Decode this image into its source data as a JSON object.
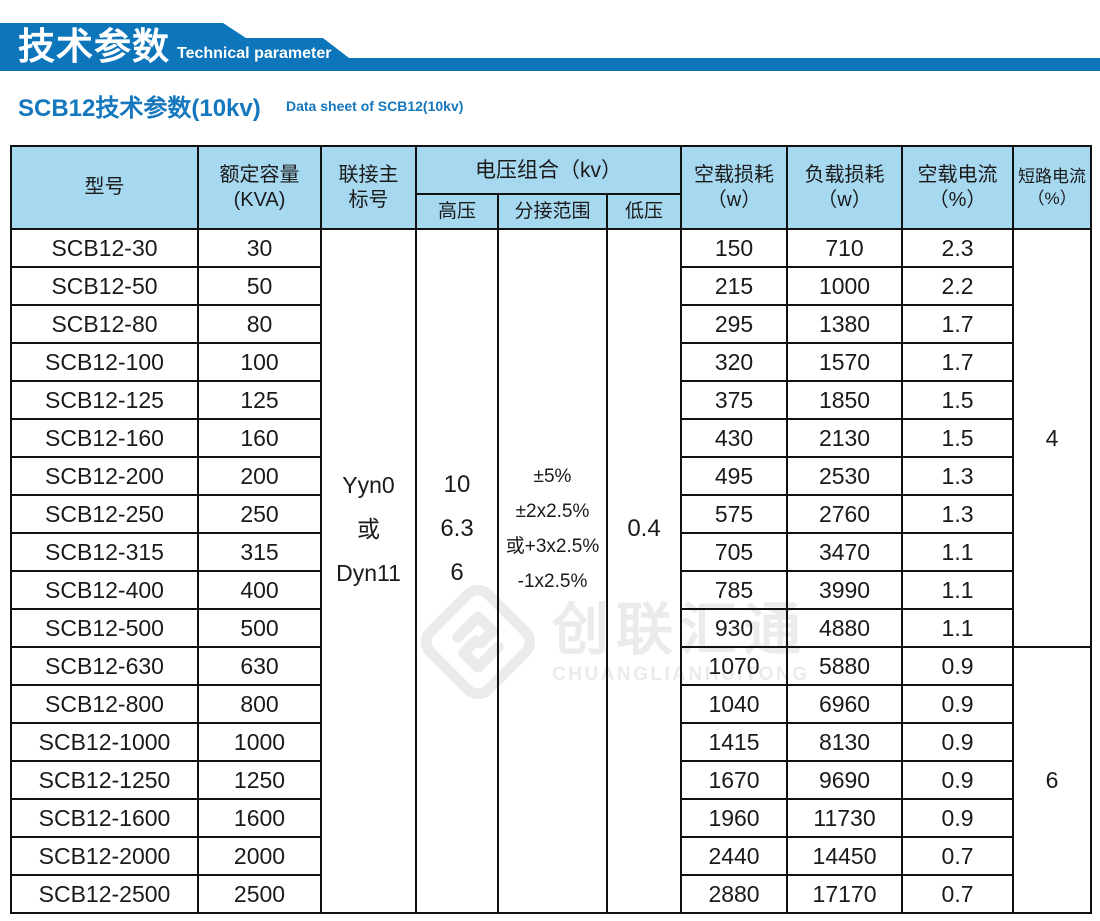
{
  "banner": {
    "title_cn": "技术参数",
    "title_en": "Technical parameter"
  },
  "page_title": {
    "cn": "SCB12技术参数(10kv)",
    "en": "Data sheet of SCB12(10kv)"
  },
  "table": {
    "header": {
      "model": "型号",
      "capacity_line1": "额定容量",
      "capacity_line2": "(KVA)",
      "connection_line1": "联接主",
      "connection_line2": "标号",
      "voltage_group": "电压组合（kv）",
      "hv": "高压",
      "tap": "分接范围",
      "lv": "低压",
      "noload_loss_line1": "空载损耗",
      "noload_loss_line2": "（w）",
      "load_loss_line1": "负载损耗",
      "load_loss_line2": "（w）",
      "noload_current_line1": "空载电流",
      "noload_current_line2": "（%）",
      "short_circuit_line1": "短路电流",
      "short_circuit_line2": "（%）"
    },
    "merged": {
      "connection_lines": [
        "Yyn0",
        "或",
        "Dyn11"
      ],
      "hv_lines": [
        "10",
        "6.3",
        "6"
      ],
      "tap_lines": [
        "±5%",
        "±2x2.5%",
        "或+3x2.5%",
        "-1x2.5%"
      ],
      "lv_lines": [
        "0.4"
      ],
      "short_circuit_groups": [
        {
          "value": "4",
          "row_span": 11
        },
        {
          "value": "6",
          "row_span": 7
        }
      ]
    },
    "rows": [
      {
        "model": "SCB12-30",
        "kva": "30",
        "noload": "150",
        "load": "710",
        "current": "2.3"
      },
      {
        "model": "SCB12-50",
        "kva": "50",
        "noload": "215",
        "load": "1000",
        "current": "2.2"
      },
      {
        "model": "SCB12-80",
        "kva": "80",
        "noload": "295",
        "load": "1380",
        "current": "1.7"
      },
      {
        "model": "SCB12-100",
        "kva": "100",
        "noload": "320",
        "load": "1570",
        "current": "1.7"
      },
      {
        "model": "SCB12-125",
        "kva": "125",
        "noload": "375",
        "load": "1850",
        "current": "1.5"
      },
      {
        "model": "SCB12-160",
        "kva": "160",
        "noload": "430",
        "load": "2130",
        "current": "1.5"
      },
      {
        "model": "SCB12-200",
        "kva": "200",
        "noload": "495",
        "load": "2530",
        "current": "1.3"
      },
      {
        "model": "SCB12-250",
        "kva": "250",
        "noload": "575",
        "load": "2760",
        "current": "1.3"
      },
      {
        "model": "SCB12-315",
        "kva": "315",
        "noload": "705",
        "load": "3470",
        "current": "1.1"
      },
      {
        "model": "SCB12-400",
        "kva": "400",
        "noload": "785",
        "load": "3990",
        "current": "1.1"
      },
      {
        "model": "SCB12-500",
        "kva": "500",
        "noload": "930",
        "load": "4880",
        "current": "1.1"
      },
      {
        "model": "SCB12-630",
        "kva": "630",
        "noload": "1070",
        "load": "5880",
        "current": "0.9"
      },
      {
        "model": "SCB12-800",
        "kva": "800",
        "noload": "1040",
        "load": "6960",
        "current": "0.9"
      },
      {
        "model": "SCB12-1000",
        "kva": "1000",
        "noload": "1415",
        "load": "8130",
        "current": "0.9"
      },
      {
        "model": "SCB12-1250",
        "kva": "1250",
        "noload": "1670",
        "load": "9690",
        "current": "0.9"
      },
      {
        "model": "SCB12-1600",
        "kva": "1600",
        "noload": "1960",
        "load": "11730",
        "current": "0.9"
      },
      {
        "model": "SCB12-2000",
        "kva": "2000",
        "noload": "2440",
        "load": "14450",
        "current": "0.7"
      },
      {
        "model": "SCB12-2500",
        "kva": "2500",
        "noload": "2880",
        "load": "17170",
        "current": "0.7"
      }
    ]
  },
  "watermark": {
    "cn": "创联汇通",
    "en": "CHUANGLIANHUITONG"
  },
  "colors": {
    "banner_blue": "#0d75ba",
    "header_cell_blue": "#a6d8f0",
    "border": "#111111",
    "title_blue": "#1577bd",
    "watermark": "#ebebeb"
  }
}
